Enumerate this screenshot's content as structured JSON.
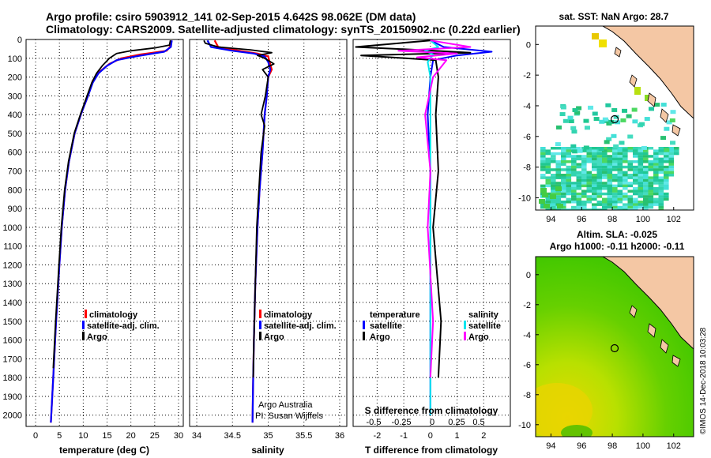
{
  "header": {
    "line1": "Argo profile: csiro 5903912_141 02-Sep-2015 4.642S 98.062E (DM data)",
    "line2": "Climatology: CARS2009. Satellite-adjusted climatology: synTS_20150902.nc (0.22d earlier)"
  },
  "colors": {
    "climatology": "#ff0000",
    "satellite": "#0000ff",
    "argo": "#000000",
    "salinity_satellite": "#00e5ee",
    "salinity_argo": "#ff00ff",
    "land": "#f4c7a4"
  },
  "chart_data": [
    {
      "type": "line",
      "name": "temperature-profile",
      "xlabel": "temperature (deg C)",
      "ylabel": "",
      "xlim": [
        -2,
        31
      ],
      "ylim": [
        2060,
        0
      ],
      "xticks": [
        "0",
        "5",
        "10",
        "15",
        "20",
        "25",
        "30"
      ],
      "yticks": [
        "0",
        "100",
        "200",
        "300",
        "400",
        "500",
        "600",
        "700",
        "800",
        "900",
        "1000",
        "1100",
        "1200",
        "1300",
        "1400",
        "1500",
        "1600",
        "1700",
        "1800",
        "1900",
        "2000"
      ],
      "legend": [
        "climatology",
        "satellite-adj. clim.",
        "Argo"
      ],
      "series": [
        {
          "name": "climatology",
          "points": [
            [
              28.4,
              5
            ],
            [
              28.2,
              40
            ],
            [
              27.5,
              60
            ],
            [
              22,
              80
            ],
            [
              18,
              100
            ],
            [
              15.5,
              130
            ],
            [
              13.5,
              170
            ],
            [
              12,
              220
            ],
            [
              11,
              300
            ],
            [
              9.5,
              400
            ],
            [
              8.2,
              500
            ],
            [
              7,
              650
            ],
            [
              6.2,
              800
            ],
            [
              5.5,
              1000
            ],
            [
              5,
              1200
            ],
            [
              4.3,
              1500
            ],
            [
              3.8,
              1750
            ],
            [
              3.2,
              2040
            ]
          ]
        },
        {
          "name": "satellite-adj. clim.",
          "points": [
            [
              28.6,
              5
            ],
            [
              28.4,
              40
            ],
            [
              27,
              65
            ],
            [
              21,
              90
            ],
            [
              17,
              110
            ],
            [
              15,
              140
            ],
            [
              13.2,
              180
            ],
            [
              12,
              230
            ],
            [
              11,
              300
            ],
            [
              9.5,
              400
            ],
            [
              8.2,
              500
            ],
            [
              7,
              650
            ],
            [
              6.2,
              800
            ],
            [
              5.5,
              1000
            ],
            [
              5,
              1200
            ],
            [
              4.3,
              1500
            ],
            [
              3.8,
              1750
            ],
            [
              3.2,
              2040
            ]
          ]
        },
        {
          "name": "Argo",
          "points": [
            [
              28.3,
              5
            ],
            [
              28.1,
              30
            ],
            [
              25,
              45
            ],
            [
              20,
              60
            ],
            [
              17,
              75
            ],
            [
              15.5,
              100
            ],
            [
              14,
              140
            ],
            [
              12.8,
              180
            ],
            [
              11.8,
              230
            ],
            [
              10.8,
              300
            ],
            [
              9.4,
              400
            ],
            [
              8.1,
              500
            ],
            [
              6.9,
              650
            ],
            [
              6.1,
              800
            ],
            [
              5.4,
              1000
            ],
            [
              4.9,
              1200
            ],
            [
              4.2,
              1500
            ],
            [
              3.7,
              1750
            ]
          ]
        }
      ]
    },
    {
      "type": "line",
      "name": "salinity-profile",
      "xlabel": "salinity",
      "xlim": [
        33.9,
        36.1
      ],
      "ylim": [
        2060,
        0
      ],
      "xticks": [
        "34",
        "34.5",
        "35",
        "35.5",
        "36"
      ],
      "legend": [
        "climatology",
        "satellite-adj. clim.",
        "Argo"
      ],
      "annotations": [
        "Argo Australia",
        "PI: Susan Wijffels"
      ],
      "series": [
        {
          "name": "climatology",
          "points": [
            [
              34.25,
              5
            ],
            [
              34.3,
              40
            ],
            [
              34.6,
              60
            ],
            [
              34.85,
              75
            ],
            [
              35.0,
              90
            ],
            [
              35.02,
              120
            ],
            [
              35.05,
              160
            ],
            [
              35.0,
              200
            ],
            [
              34.98,
              300
            ],
            [
              34.95,
              400
            ],
            [
              34.92,
              600
            ],
            [
              34.88,
              800
            ],
            [
              34.85,
              1000
            ],
            [
              34.82,
              1300
            ],
            [
              34.8,
              1600
            ],
            [
              34.79,
              1800
            ],
            [
              34.78,
              2040
            ]
          ]
        },
        {
          "name": "satellite-adj. clim.",
          "points": [
            [
              34.15,
              5
            ],
            [
              34.2,
              40
            ],
            [
              34.5,
              60
            ],
            [
              34.8,
              75
            ],
            [
              34.95,
              90
            ],
            [
              35.0,
              120
            ],
            [
              35.03,
              160
            ],
            [
              35.0,
              200
            ],
            [
              34.98,
              300
            ],
            [
              34.95,
              400
            ],
            [
              34.92,
              600
            ],
            [
              34.88,
              800
            ],
            [
              34.85,
              1000
            ],
            [
              34.82,
              1300
            ],
            [
              34.8,
              1600
            ],
            [
              34.79,
              1800
            ],
            [
              34.78,
              2040
            ]
          ]
        },
        {
          "name": "Argo",
          "points": [
            [
              34.1,
              5
            ],
            [
              34.12,
              20
            ],
            [
              34.3,
              40
            ],
            [
              34.75,
              55
            ],
            [
              35.05,
              70
            ],
            [
              34.85,
              85
            ],
            [
              34.95,
              100
            ],
            [
              35.08,
              130
            ],
            [
              34.92,
              160
            ],
            [
              35.0,
              200
            ],
            [
              34.96,
              300
            ],
            [
              34.9,
              400
            ],
            [
              34.95,
              460
            ],
            [
              34.9,
              600
            ],
            [
              34.87,
              800
            ],
            [
              34.84,
              1000
            ],
            [
              34.82,
              1300
            ],
            [
              34.8,
              1600
            ],
            [
              34.79,
              1800
            ]
          ]
        }
      ]
    },
    {
      "type": "line",
      "name": "difference-profile",
      "xlabel": "T difference from climatology",
      "xlabel_top": "S difference from climatology",
      "xlim": [
        -2.9,
        3.0
      ],
      "ylim": [
        2060,
        0
      ],
      "xticks": [
        "-2",
        "-1",
        "0",
        "1",
        "2"
      ],
      "xticks_top": [
        "-0.5",
        "-0.25",
        "0",
        "0.25",
        "0.5"
      ],
      "legend_left": {
        "title": "temperature",
        "items": [
          "satellite",
          "Argo"
        ]
      },
      "legend_right": {
        "title": "salinity",
        "items": [
          "satellite",
          "Argo"
        ]
      },
      "series": [
        {
          "name": "T satellite",
          "points": [
            [
              0,
              5
            ],
            [
              0.5,
              40
            ],
            [
              2.3,
              65
            ],
            [
              1.0,
              85
            ],
            [
              0.1,
              110
            ],
            [
              0,
              200
            ],
            [
              -0.1,
              400
            ],
            [
              0,
              700
            ],
            [
              0,
              1000
            ],
            [
              0,
              1500
            ],
            [
              0,
              2000
            ]
          ]
        },
        {
          "name": "T Argo",
          "points": [
            [
              0,
              5
            ],
            [
              -2.8,
              40
            ],
            [
              -0.5,
              55
            ],
            [
              1.5,
              70
            ],
            [
              -2.6,
              85
            ],
            [
              0.2,
              110
            ],
            [
              0.3,
              200
            ],
            [
              0.2,
              400
            ],
            [
              0.3,
              700
            ],
            [
              0.1,
              1000
            ],
            [
              0.4,
              1500
            ],
            [
              0.3,
              1800
            ]
          ]
        },
        {
          "name": "S satellite",
          "points": [
            [
              0,
              5
            ],
            [
              0.3,
              40
            ],
            [
              -0.2,
              60
            ],
            [
              0.1,
              80
            ],
            [
              -0.1,
              120
            ],
            [
              0,
              200
            ],
            [
              0,
              500
            ],
            [
              0,
              1000
            ],
            [
              0,
              1500
            ],
            [
              0,
              2000
            ]
          ]
        },
        {
          "name": "S Argo",
          "points": [
            [
              0,
              5
            ],
            [
              1.5,
              40
            ],
            [
              -1.2,
              60
            ],
            [
              1.0,
              75
            ],
            [
              -0.5,
              95
            ],
            [
              0.6,
              110
            ],
            [
              0.1,
              200
            ],
            [
              -0.2,
              400
            ],
            [
              0,
              700
            ],
            [
              -0.1,
              1000
            ],
            [
              0.1,
              1500
            ],
            [
              0,
              1800
            ]
          ]
        }
      ]
    },
    {
      "type": "heatmap",
      "name": "sst-map",
      "title": "sat. SST: NaN Argo: 28.7",
      "xticks": [
        "94",
        "96",
        "98",
        "100",
        "102"
      ],
      "yticks": [
        "0",
        "-2",
        "-4",
        "-6",
        "-8",
        "-10"
      ]
    },
    {
      "type": "heatmap",
      "name": "sla-map",
      "title_line1": "Altim. SLA: -0.025",
      "title_line2": "Argo h1000: -0.11 h2000: -0.11",
      "xticks": [
        "94",
        "96",
        "98",
        "100",
        "102"
      ],
      "yticks": [
        "0",
        "-2",
        "-4",
        "-6",
        "-8",
        "-10"
      ]
    }
  ],
  "footer": {
    "credit": "©IMOS 14-Dec-2018 10:03:28"
  }
}
